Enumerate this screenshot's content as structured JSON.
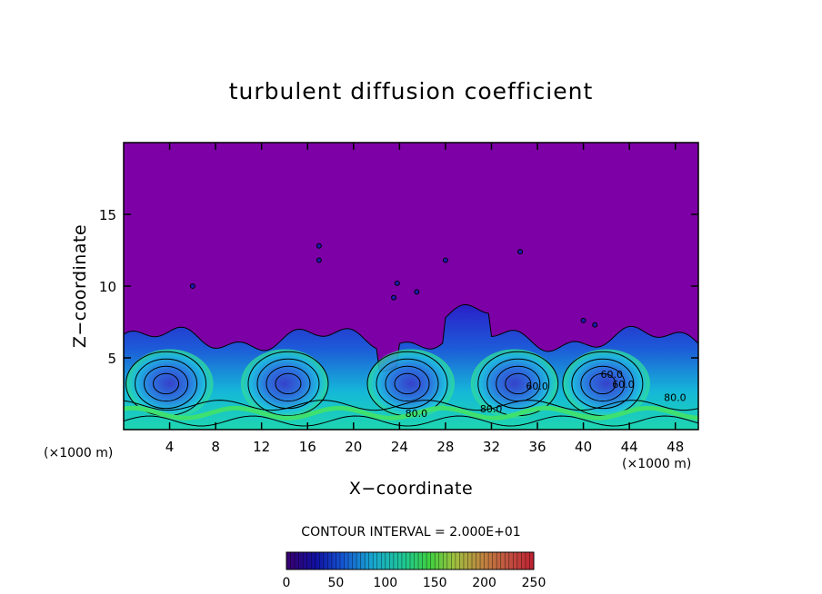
{
  "chart_data": {
    "type": "heatmap",
    "title": "turbulent diffusion coefficient",
    "xlabel": "X−coordinate",
    "ylabel": "Z−coordinate",
    "x_unit": "(×1000 m)",
    "z_unit": "(×1000 m)",
    "xlim": [
      0,
      50
    ],
    "ylim": [
      0,
      20
    ],
    "x_ticks": [
      "4",
      "8",
      "12",
      "16",
      "20",
      "24",
      "28",
      "32",
      "36",
      "40",
      "44",
      "48"
    ],
    "y_ticks": [
      "5",
      "10",
      "15"
    ],
    "contour_interval_label": "CONTOUR INTERVAL = 2.000E+01",
    "colorbar": {
      "range": [
        0,
        250
      ],
      "tick_labels": [
        "0",
        "50",
        "100",
        "150",
        "200",
        "250"
      ]
    },
    "background_color": "#7d00a6",
    "turbulent_layer_top_z": 6.3,
    "eddy_centers_x": [
      4,
      14,
      25,
      34,
      42
    ],
    "contour_labels": [
      "80.0",
      "80.0",
      "80.0",
      "60.0",
      "60.0",
      "60.0"
    ]
  }
}
